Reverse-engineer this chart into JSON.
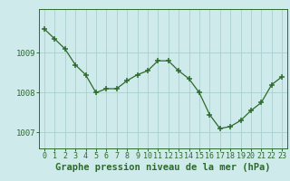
{
  "x": [
    0,
    1,
    2,
    3,
    4,
    5,
    6,
    7,
    8,
    9,
    10,
    11,
    12,
    13,
    14,
    15,
    16,
    17,
    18,
    19,
    20,
    21,
    22,
    23
  ],
  "y": [
    1009.6,
    1009.35,
    1009.1,
    1008.7,
    1008.45,
    1008.0,
    1008.1,
    1008.1,
    1008.3,
    1008.45,
    1008.55,
    1008.8,
    1008.8,
    1008.55,
    1008.35,
    1008.0,
    1007.45,
    1007.1,
    1007.15,
    1007.3,
    1007.55,
    1007.75,
    1008.2,
    1008.4
  ],
  "line_color": "#2d6a2d",
  "marker_color": "#2d6a2d",
  "background_color": "#ceeaea",
  "grid_color": "#aacfcf",
  "axis_color": "#2d6a2d",
  "tick_label_color": "#2d6a2d",
  "xlabel": "Graphe pression niveau de la mer (hPa)",
  "xlabel_color": "#2d6a2d",
  "ylim": [
    1006.6,
    1010.1
  ],
  "xlim": [
    -0.5,
    23.5
  ],
  "yticks": [
    1007,
    1008,
    1009
  ],
  "xtick_labels": [
    "0",
    "1",
    "2",
    "3",
    "4",
    "5",
    "6",
    "7",
    "8",
    "9",
    "10",
    "11",
    "12",
    "13",
    "14",
    "15",
    "16",
    "17",
    "18",
    "19",
    "20",
    "21",
    "22",
    "23"
  ],
  "tick_fontsize": 6.5,
  "xlabel_fontsize": 7.5
}
